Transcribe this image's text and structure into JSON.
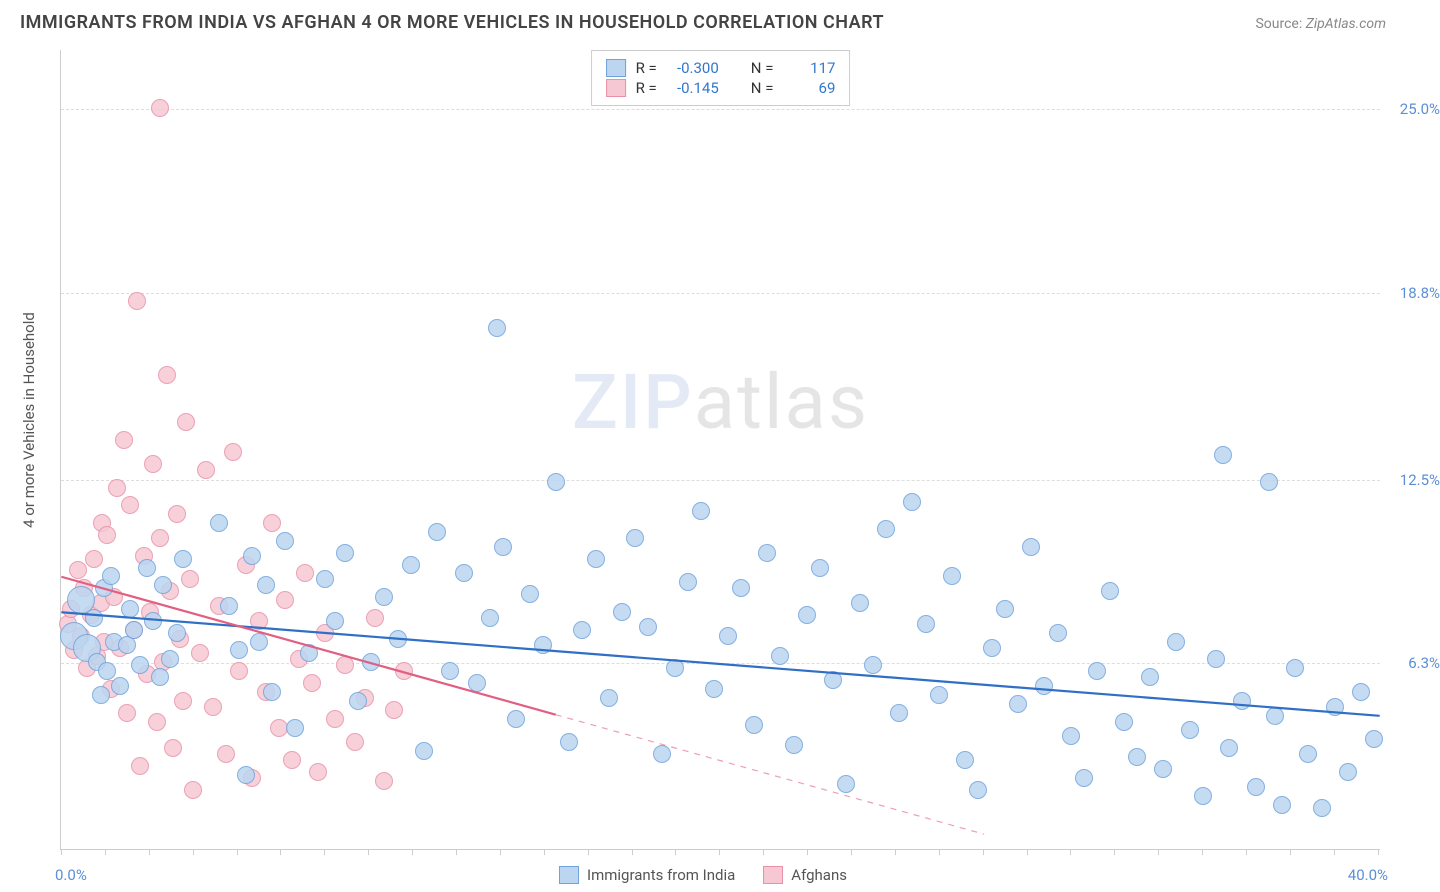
{
  "title": "IMMIGRANTS FROM INDIA VS AFGHAN 4 OR MORE VEHICLES IN HOUSEHOLD CORRELATION CHART",
  "source_label": "Source: ",
  "source_name": "ZipAtlas.com",
  "ylabel": "4 or more Vehicles in Household",
  "watermark_a": "ZIP",
  "watermark_b": "atlas",
  "chart": {
    "type": "scatter",
    "xlim": [
      0,
      40
    ],
    "ylim": [
      0,
      27
    ],
    "xtick_step": 1.33,
    "yticks": [
      6.3,
      12.5,
      18.8,
      25.0
    ],
    "ytick_labels": [
      "6.3%",
      "12.5%",
      "18.8%",
      "25.0%"
    ],
    "xmin_label": "0.0%",
    "xmax_label": "40.0%",
    "marker_radius": 9,
    "marker_radius_large": 14,
    "background_color": "#ffffff",
    "grid_color": "#dddddd",
    "axis_color": "#cccccc",
    "text_color": "#555555",
    "tick_label_color": "#5b8fd6",
    "title_fontsize": 18,
    "label_fontsize": 15
  },
  "series": [
    {
      "key": "india",
      "label": "Immigrants from India",
      "fill": "#bcd5f0",
      "stroke": "#6fa3db",
      "line_color": "#2f6fc5",
      "line_width": 2.2,
      "R": "-0.300",
      "N": "117",
      "trend": {
        "x1": 0,
        "y1": 8.0,
        "x2": 40,
        "y2": 4.5,
        "dash_from_x": null
      },
      "points": [
        [
          0.4,
          7.2
        ],
        [
          0.6,
          8.4
        ],
        [
          0.8,
          6.8
        ],
        [
          1.0,
          7.8
        ],
        [
          1.1,
          6.3
        ],
        [
          1.2,
          5.2
        ],
        [
          1.3,
          8.8
        ],
        [
          1.4,
          6.0
        ],
        [
          1.5,
          9.2
        ],
        [
          1.6,
          7.0
        ],
        [
          1.8,
          5.5
        ],
        [
          2.0,
          6.9
        ],
        [
          2.1,
          8.1
        ],
        [
          2.2,
          7.4
        ],
        [
          2.4,
          6.2
        ],
        [
          2.6,
          9.5
        ],
        [
          2.8,
          7.7
        ],
        [
          3.0,
          5.8
        ],
        [
          3.1,
          8.9
        ],
        [
          3.3,
          6.4
        ],
        [
          3.5,
          7.3
        ],
        [
          3.7,
          9.8
        ],
        [
          4.8,
          11.0
        ],
        [
          5.1,
          8.2
        ],
        [
          5.4,
          6.7
        ],
        [
          5.6,
          2.5
        ],
        [
          5.8,
          9.9
        ],
        [
          6.0,
          7.0
        ],
        [
          6.2,
          8.9
        ],
        [
          6.4,
          5.3
        ],
        [
          6.8,
          10.4
        ],
        [
          7.1,
          4.1
        ],
        [
          7.5,
          6.6
        ],
        [
          8.0,
          9.1
        ],
        [
          8.3,
          7.7
        ],
        [
          8.6,
          10.0
        ],
        [
          9.0,
          5.0
        ],
        [
          9.4,
          6.3
        ],
        [
          9.8,
          8.5
        ],
        [
          10.2,
          7.1
        ],
        [
          10.6,
          9.6
        ],
        [
          11.0,
          3.3
        ],
        [
          11.4,
          10.7
        ],
        [
          11.8,
          6.0
        ],
        [
          12.2,
          9.3
        ],
        [
          12.6,
          5.6
        ],
        [
          13.0,
          7.8
        ],
        [
          13.4,
          10.2
        ],
        [
          13.8,
          4.4
        ],
        [
          13.2,
          17.6
        ],
        [
          14.2,
          8.6
        ],
        [
          14.6,
          6.9
        ],
        [
          15.0,
          12.4
        ],
        [
          15.4,
          3.6
        ],
        [
          15.8,
          7.4
        ],
        [
          16.2,
          9.8
        ],
        [
          16.6,
          5.1
        ],
        [
          17.0,
          8.0
        ],
        [
          17.4,
          10.5
        ],
        [
          17.8,
          7.5
        ],
        [
          18.2,
          3.2
        ],
        [
          18.6,
          6.1
        ],
        [
          19.0,
          9.0
        ],
        [
          19.4,
          11.4
        ],
        [
          19.8,
          5.4
        ],
        [
          20.2,
          7.2
        ],
        [
          20.6,
          8.8
        ],
        [
          21.0,
          4.2
        ],
        [
          21.4,
          10.0
        ],
        [
          21.8,
          6.5
        ],
        [
          22.2,
          3.5
        ],
        [
          22.6,
          7.9
        ],
        [
          23.0,
          9.5
        ],
        [
          23.4,
          5.7
        ],
        [
          23.8,
          2.2
        ],
        [
          24.2,
          8.3
        ],
        [
          24.6,
          6.2
        ],
        [
          25.0,
          10.8
        ],
        [
          25.4,
          4.6
        ],
        [
          25.8,
          11.7
        ],
        [
          26.2,
          7.6
        ],
        [
          26.6,
          5.2
        ],
        [
          27.0,
          9.2
        ],
        [
          27.4,
          3.0
        ],
        [
          27.8,
          2.0
        ],
        [
          28.2,
          6.8
        ],
        [
          28.6,
          8.1
        ],
        [
          29.0,
          4.9
        ],
        [
          29.4,
          10.2
        ],
        [
          29.8,
          5.5
        ],
        [
          30.2,
          7.3
        ],
        [
          30.6,
          3.8
        ],
        [
          31.0,
          2.4
        ],
        [
          31.4,
          6.0
        ],
        [
          31.8,
          8.7
        ],
        [
          32.2,
          4.3
        ],
        [
          32.6,
          3.1
        ],
        [
          33.0,
          5.8
        ],
        [
          33.4,
          2.7
        ],
        [
          33.8,
          7.0
        ],
        [
          34.2,
          4.0
        ],
        [
          34.6,
          1.8
        ],
        [
          35.0,
          6.4
        ],
        [
          35.2,
          13.3
        ],
        [
          35.4,
          3.4
        ],
        [
          35.8,
          5.0
        ],
        [
          36.2,
          2.1
        ],
        [
          36.6,
          12.4
        ],
        [
          36.8,
          4.5
        ],
        [
          37.0,
          1.5
        ],
        [
          37.4,
          6.1
        ],
        [
          37.8,
          3.2
        ],
        [
          38.2,
          1.4
        ],
        [
          38.6,
          4.8
        ],
        [
          39.0,
          2.6
        ],
        [
          39.4,
          5.3
        ],
        [
          39.8,
          3.7
        ]
      ]
    },
    {
      "key": "afghan",
      "label": "Afghans",
      "fill": "#f6c8d3",
      "stroke": "#e891a8",
      "line_color": "#e15f83",
      "line_width": 2.2,
      "R": "-0.145",
      "N": "69",
      "trend": {
        "x1": 0,
        "y1": 9.2,
        "x2": 28,
        "y2": 0.5,
        "dash_from_x": 15
      },
      "points": [
        [
          0.2,
          7.6
        ],
        [
          0.3,
          8.1
        ],
        [
          0.4,
          6.7
        ],
        [
          0.5,
          9.4
        ],
        [
          0.6,
          7.2
        ],
        [
          0.7,
          8.8
        ],
        [
          0.8,
          6.1
        ],
        [
          0.9,
          7.9
        ],
        [
          1.0,
          9.8
        ],
        [
          1.1,
          6.5
        ],
        [
          1.2,
          8.3
        ],
        [
          1.25,
          11.0
        ],
        [
          1.3,
          7.0
        ],
        [
          1.4,
          10.6
        ],
        [
          1.5,
          5.4
        ],
        [
          1.6,
          8.5
        ],
        [
          1.7,
          12.2
        ],
        [
          1.8,
          6.8
        ],
        [
          1.9,
          13.8
        ],
        [
          2.0,
          4.6
        ],
        [
          2.1,
          11.6
        ],
        [
          2.2,
          7.4
        ],
        [
          2.3,
          18.5
        ],
        [
          2.4,
          2.8
        ],
        [
          2.5,
          9.9
        ],
        [
          2.6,
          5.9
        ],
        [
          2.7,
          8.0
        ],
        [
          2.8,
          13.0
        ],
        [
          2.9,
          4.3
        ],
        [
          3.0,
          10.5
        ],
        [
          3.1,
          6.3
        ],
        [
          3.2,
          16.0
        ],
        [
          3.3,
          8.7
        ],
        [
          3.4,
          3.4
        ],
        [
          3.5,
          11.3
        ],
        [
          3.6,
          7.1
        ],
        [
          3.7,
          5.0
        ],
        [
          3.8,
          14.4
        ],
        [
          3.9,
          9.1
        ],
        [
          4.0,
          2.0
        ],
        [
          3.0,
          25.0
        ],
        [
          4.2,
          6.6
        ],
        [
          4.4,
          12.8
        ],
        [
          4.6,
          4.8
        ],
        [
          4.8,
          8.2
        ],
        [
          5.0,
          3.2
        ],
        [
          5.2,
          13.4
        ],
        [
          5.4,
          6.0
        ],
        [
          5.6,
          9.6
        ],
        [
          5.8,
          2.4
        ],
        [
          6.0,
          7.7
        ],
        [
          6.2,
          5.3
        ],
        [
          6.4,
          11.0
        ],
        [
          6.6,
          4.1
        ],
        [
          6.8,
          8.4
        ],
        [
          7.0,
          3.0
        ],
        [
          7.2,
          6.4
        ],
        [
          7.4,
          9.3
        ],
        [
          7.6,
          5.6
        ],
        [
          7.8,
          2.6
        ],
        [
          8.0,
          7.3
        ],
        [
          8.3,
          4.4
        ],
        [
          8.6,
          6.2
        ],
        [
          8.9,
          3.6
        ],
        [
          9.2,
          5.1
        ],
        [
          9.5,
          7.8
        ],
        [
          9.8,
          2.3
        ],
        [
          10.1,
          4.7
        ],
        [
          10.4,
          6.0
        ]
      ]
    }
  ],
  "legend": {
    "r_label": "R =",
    "n_label": "N ="
  }
}
